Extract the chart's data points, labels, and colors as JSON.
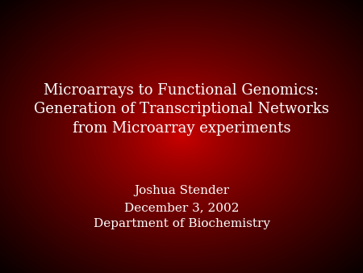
{
  "title_line1": "Microarrays to Functional Genomics:",
  "title_line2": "Generation of Transcriptional Networks",
  "title_line3": "from Microarray experiments",
  "subtitle_line1": "Joshua Stender",
  "subtitle_line2": "December 3, 2002",
  "subtitle_line3": "Department of Biochemistry",
  "text_color": "#ffffff",
  "title_fontsize": 13,
  "subtitle_fontsize": 11,
  "fig_width": 4.5,
  "fig_height": 3.38,
  "dpi": 100
}
